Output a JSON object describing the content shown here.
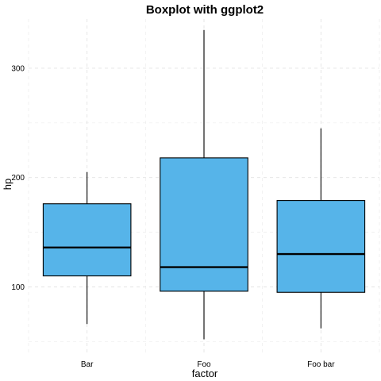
{
  "chart_data": {
    "type": "boxplot",
    "title": "Boxplot with ggplot2",
    "xlabel": "factor",
    "ylabel": "hp",
    "categories": [
      "Bar",
      "Foo",
      "Foo bar"
    ],
    "yticks": [
      100,
      200,
      300
    ],
    "ylim": [
      40,
      345
    ],
    "grid": true,
    "box_color": "#56B4E9",
    "boxes": [
      {
        "category": "Bar",
        "min": 66,
        "q1": 110,
        "median": 136,
        "q3": 176,
        "max": 205
      },
      {
        "category": "Foo",
        "min": 52,
        "q1": 96,
        "median": 118,
        "q3": 218,
        "max": 335
      },
      {
        "category": "Foo bar",
        "min": 62,
        "q1": 95,
        "median": 130,
        "q3": 179,
        "max": 245
      }
    ]
  }
}
